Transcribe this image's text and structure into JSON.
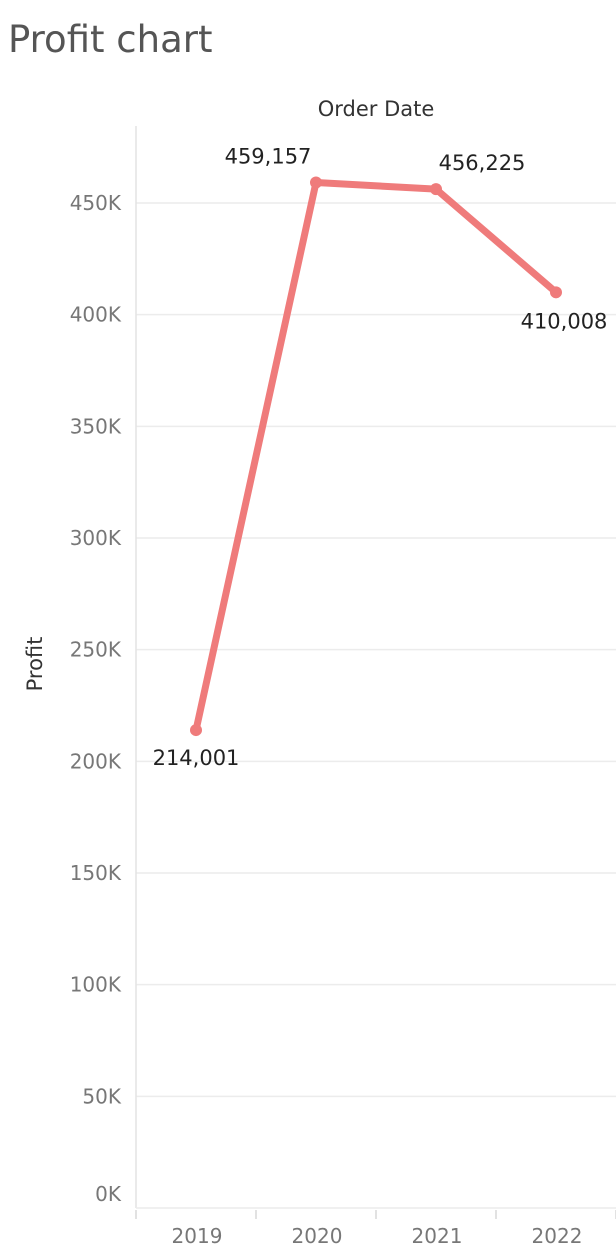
{
  "page": {
    "title": "Profit chart"
  },
  "chart_data": {
    "type": "line",
    "x_header": "Order Date",
    "ylabel": "Profit",
    "categories": [
      "2019",
      "2020",
      "2021",
      "2022"
    ],
    "series": [
      {
        "values": [
          214001,
          459157,
          456225,
          410008
        ],
        "value_labels": [
          "214,001",
          "459,157",
          "456,225",
          "410,008"
        ]
      }
    ],
    "ylim": [
      0,
      450000
    ],
    "y_ticks": [
      0,
      50000,
      100000,
      150000,
      200000,
      250000,
      300000,
      350000,
      400000,
      450000
    ],
    "y_tick_labels": [
      "0K",
      "50K",
      "100K",
      "150K",
      "200K",
      "250K",
      "300K",
      "350K",
      "400K",
      "450K"
    ],
    "grid": true,
    "line_color": "#ef7b7b",
    "grid_color": "#ececec",
    "axis_color": "#e3e3e3"
  }
}
